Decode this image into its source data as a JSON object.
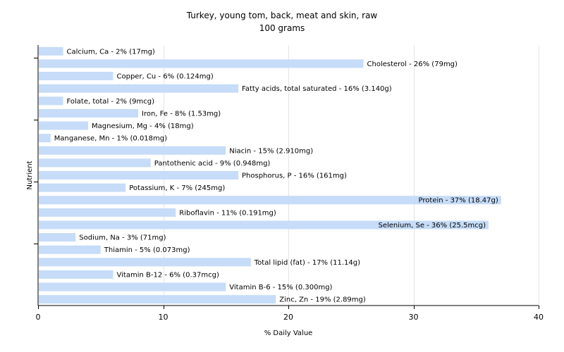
{
  "chart_data": {
    "type": "bar",
    "orientation": "horizontal",
    "title": "Turkey, young tom, back, meat and skin, raw",
    "subtitle": "100 grams",
    "xlabel": "% Daily Value",
    "ylabel": "Nutrient",
    "xlim": [
      0,
      40
    ],
    "xticks": [
      0,
      10,
      20,
      30,
      40
    ],
    "grid": "vertical",
    "bar_color": "#c6dcf8",
    "categories": [
      "Calcium, Ca",
      "Cholesterol",
      "Copper, Cu",
      "Fatty acids, total saturated",
      "Folate, total",
      "Iron, Fe",
      "Magnesium, Mg",
      "Manganese, Mn",
      "Niacin",
      "Pantothenic acid",
      "Phosphorus, P",
      "Potassium, K",
      "Protein",
      "Riboflavin",
      "Selenium, Se",
      "Sodium, Na",
      "Thiamin",
      "Total lipid (fat)",
      "Vitamin B-12",
      "Vitamin B-6",
      "Zinc, Zn"
    ],
    "values": [
      2,
      26,
      6,
      16,
      2,
      8,
      4,
      1,
      15,
      9,
      16,
      7,
      37,
      11,
      36,
      3,
      5,
      17,
      6,
      15,
      19
    ],
    "labels": [
      "Calcium, Ca - 2% (17mg)",
      "Cholesterol - 26% (79mg)",
      "Copper, Cu - 6% (0.124mg)",
      "Fatty acids, total saturated - 16% (3.140g)",
      "Folate, total - 2% (9mcg)",
      "Iron, Fe - 8% (1.53mg)",
      "Magnesium, Mg - 4% (18mg)",
      "Manganese, Mn - 1% (0.018mg)",
      "Niacin - 15% (2.910mg)",
      "Pantothenic acid - 9% (0.948mg)",
      "Phosphorus, P - 16% (161mg)",
      "Potassium, K - 7% (245mg)",
      "Protein - 37% (18.47g)",
      "Riboflavin - 11% (0.191mg)",
      "Selenium, Se - 36% (25.5mcg)",
      "Sodium, Na - 3% (71mg)",
      "Thiamin - 5% (0.073mg)",
      "Total lipid (fat) - 17% (11.14g)",
      "Vitamin B-12 - 6% (0.37mcg)",
      "Vitamin B-6 - 15% (0.300mg)",
      "Zinc, Zn - 19% (2.89mg)"
    ]
  }
}
